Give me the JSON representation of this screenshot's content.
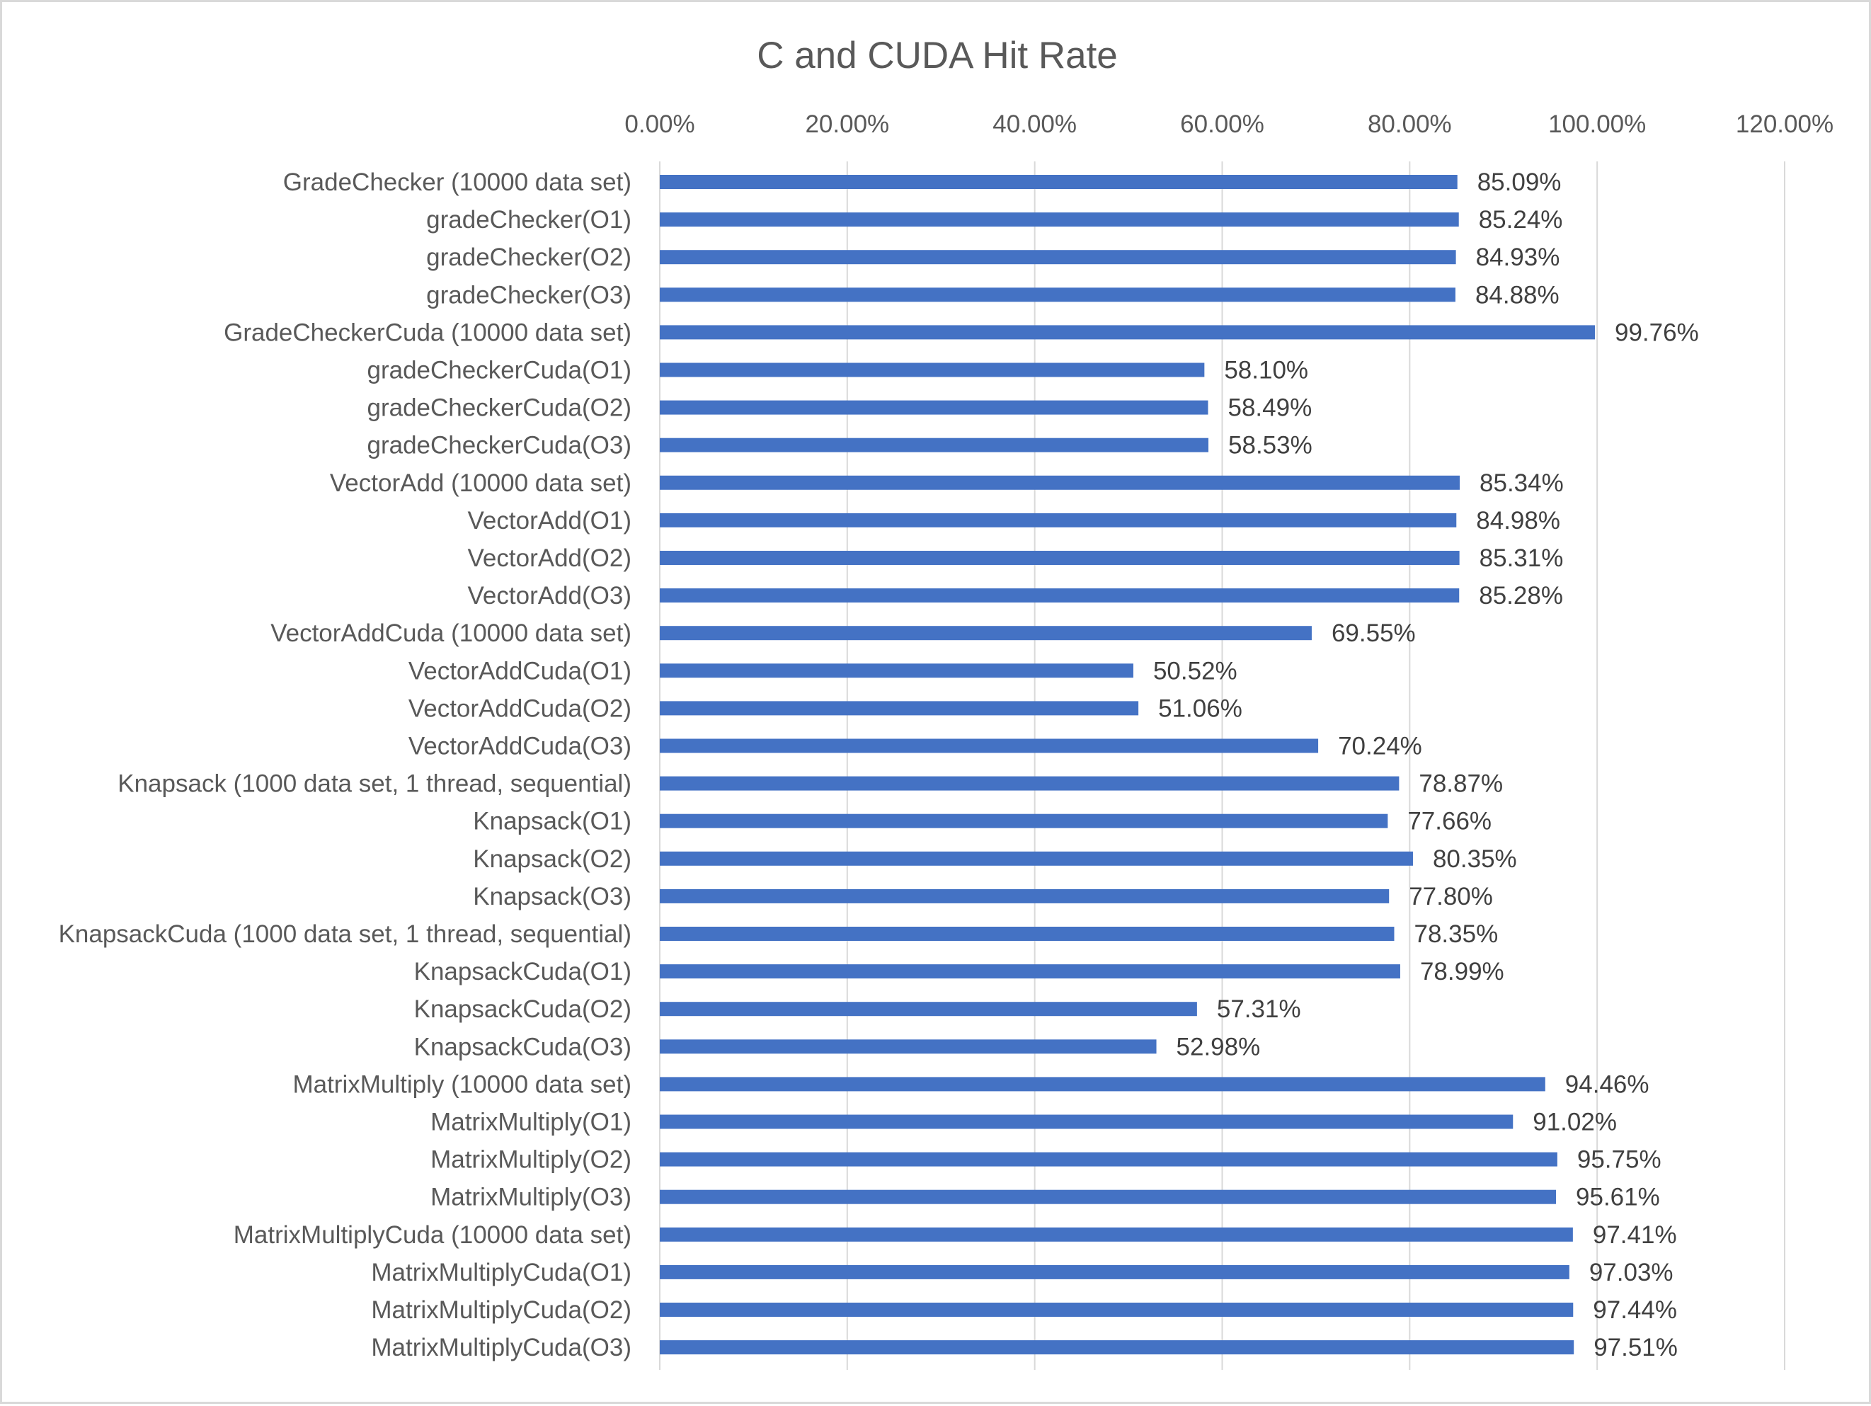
{
  "chart_data": {
    "type": "bar",
    "orientation": "horizontal",
    "title": "C and CUDA Hit Rate",
    "xlabel": "",
    "ylabel": "",
    "xlim": [
      0,
      120
    ],
    "x_ticks": [
      "0.00%",
      "20.00%",
      "40.00%",
      "60.00%",
      "80.00%",
      "100.00%",
      "120.00%"
    ],
    "x_axis_position": "top",
    "grid": true,
    "legend": "none",
    "bar_color": "#4472C4",
    "categories": [
      "GradeChecker (10000 data set)",
      "gradeChecker(O1)",
      "gradeChecker(O2)",
      "gradeChecker(O3)",
      "GradeCheckerCuda (10000 data set)",
      "gradeCheckerCuda(O1)",
      "gradeCheckerCuda(O2)",
      "gradeCheckerCuda(O3)",
      "VectorAdd (10000 data set)",
      "VectorAdd(O1)",
      "VectorAdd(O2)",
      "VectorAdd(O3)",
      "VectorAddCuda (10000 data set)",
      "VectorAddCuda(O1)",
      "VectorAddCuda(O2)",
      "VectorAddCuda(O3)",
      "Knapsack (1000 data set, 1 thread, sequential)",
      "Knapsack(O1)",
      "Knapsack(O2)",
      "Knapsack(O3)",
      "KnapsackCuda (1000 data set, 1 thread, sequential)",
      "KnapsackCuda(O1)",
      "KnapsackCuda(O2)",
      "KnapsackCuda(O3)",
      "MatrixMultiply (10000 data set)",
      "MatrixMultiply(O1)",
      "MatrixMultiply(O2)",
      "MatrixMultiply(O3)",
      "MatrixMultiplyCuda (10000 data set)",
      "MatrixMultiplyCuda(O1)",
      "MatrixMultiplyCuda(O2)",
      "MatrixMultiplyCuda(O3)"
    ],
    "values": [
      85.09,
      85.24,
      84.93,
      84.88,
      99.76,
      58.1,
      58.49,
      58.53,
      85.34,
      84.98,
      85.31,
      85.28,
      69.55,
      50.52,
      51.06,
      70.24,
      78.87,
      77.66,
      80.35,
      77.8,
      78.35,
      78.99,
      57.31,
      52.98,
      94.46,
      91.02,
      95.75,
      95.61,
      97.41,
      97.03,
      97.44,
      97.51
    ],
    "data_labels": [
      "85.09%",
      "85.24%",
      "84.93%",
      "84.88%",
      "99.76%",
      "58.10%",
      "58.49%",
      "58.53%",
      "85.34%",
      "84.98%",
      "85.31%",
      "85.28%",
      "69.55%",
      "50.52%",
      "51.06%",
      "70.24%",
      "78.87%",
      "77.66%",
      "80.35%",
      "77.80%",
      "78.35%",
      "78.99%",
      "57.31%",
      "52.98%",
      "94.46%",
      "91.02%",
      "95.75%",
      "95.61%",
      "97.41%",
      "97.03%",
      "97.44%",
      "97.51%"
    ]
  }
}
